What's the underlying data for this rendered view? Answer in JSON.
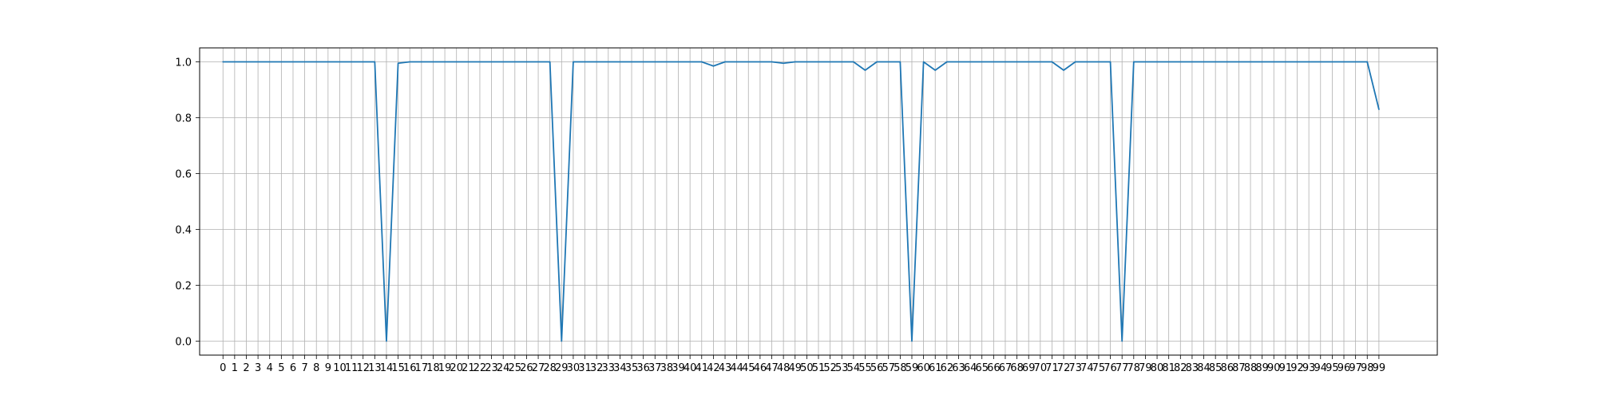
{
  "chart_data": {
    "type": "line",
    "title": "",
    "xlabel": "",
    "ylabel": "",
    "grid": true,
    "x_range": [
      -2,
      104
    ],
    "ylim": [
      -0.05,
      1.05
    ],
    "x_ticks": [
      0,
      1,
      2,
      3,
      4,
      5,
      6,
      7,
      8,
      9,
      10,
      11,
      12,
      13,
      14,
      15,
      16,
      17,
      18,
      19,
      20,
      21,
      22,
      23,
      24,
      25,
      26,
      27,
      28,
      29,
      30,
      31,
      32,
      33,
      34,
      35,
      36,
      37,
      38,
      39,
      40,
      41,
      42,
      43,
      44,
      45,
      46,
      47,
      48,
      49,
      50,
      51,
      52,
      53,
      54,
      55,
      56,
      57,
      58,
      59,
      60,
      61,
      62,
      63,
      64,
      65,
      66,
      67,
      68,
      69,
      70,
      71,
      72,
      73,
      74,
      75,
      76,
      77,
      78,
      79,
      80,
      81,
      82,
      83,
      84,
      85,
      86,
      87,
      88,
      89,
      90,
      91,
      92,
      93,
      94,
      95,
      96,
      97,
      98,
      99
    ],
    "y_ticks": [
      0.0,
      0.2,
      0.4,
      0.6,
      0.8,
      1.0
    ],
    "y_tick_labels": [
      "0.0",
      "0.2",
      "0.4",
      "0.6",
      "0.8",
      "1.0"
    ],
    "line_color": "#1f77b4",
    "series": [
      {
        "values": [
          1.0,
          1.0,
          1.0,
          1.0,
          1.0,
          1.0,
          1.0,
          1.0,
          1.0,
          1.0,
          1.0,
          1.0,
          1.0,
          1.0,
          0.0,
          0.995,
          1.0,
          1.0,
          1.0,
          1.0,
          1.0,
          1.0,
          1.0,
          1.0,
          1.0,
          1.0,
          1.0,
          1.0,
          1.0,
          0.0,
          1.0,
          1.0,
          1.0,
          1.0,
          1.0,
          1.0,
          1.0,
          1.0,
          1.0,
          1.0,
          1.0,
          1.0,
          0.985,
          1.0,
          1.0,
          1.0,
          1.0,
          1.0,
          0.995,
          1.0,
          1.0,
          1.0,
          1.0,
          1.0,
          1.0,
          0.97,
          1.0,
          1.0,
          1.0,
          0.0,
          1.0,
          0.97,
          1.0,
          1.0,
          1.0,
          1.0,
          1.0,
          1.0,
          1.0,
          1.0,
          1.0,
          1.0,
          0.97,
          1.0,
          1.0,
          1.0,
          1.0,
          0.0,
          1.0,
          1.0,
          1.0,
          1.0,
          1.0,
          1.0,
          1.0,
          1.0,
          1.0,
          1.0,
          1.0,
          1.0,
          1.0,
          1.0,
          1.0,
          1.0,
          1.0,
          1.0,
          1.0,
          1.0,
          1.0,
          0.83
        ]
      }
    ]
  }
}
